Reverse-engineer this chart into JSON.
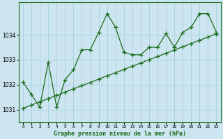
{
  "title": "Graphe pression niveau de la mer (hPa)",
  "background_color": "#cce5f0",
  "plot_bg_color": "#cce5f0",
  "line_color": "#1a6b1a",
  "grid_color": "#aad4e0",
  "xlim": [
    -0.5,
    23.5
  ],
  "ylim": [
    1030.5,
    1035.3
  ],
  "yticks": [
    1031,
    1032,
    1033,
    1034
  ],
  "xticks": [
    0,
    1,
    2,
    3,
    4,
    5,
    6,
    7,
    8,
    9,
    10,
    11,
    12,
    13,
    14,
    15,
    16,
    17,
    18,
    19,
    20,
    21,
    22,
    23
  ],
  "series1_x": [
    0,
    1,
    2,
    3,
    4,
    5,
    6,
    7,
    8,
    9,
    10,
    11,
    12,
    13,
    14,
    15,
    16,
    17,
    18,
    19,
    20,
    21,
    22,
    23
  ],
  "series1_y": [
    1032.1,
    1031.6,
    1031.1,
    1032.9,
    1031.1,
    1032.2,
    1032.6,
    1033.4,
    1033.4,
    1034.1,
    1034.85,
    1034.3,
    1033.3,
    1033.2,
    1033.2,
    1033.5,
    1033.5,
    1034.05,
    1033.5,
    1034.1,
    1034.3,
    1034.85,
    1034.85,
    1034.1
  ],
  "series2_x": [
    0,
    1,
    2,
    3,
    4,
    5,
    6,
    7,
    8,
    9,
    10,
    11,
    12,
    13,
    14,
    15,
    16,
    17,
    18,
    19,
    20,
    21,
    22,
    23
  ],
  "series2_y": [
    1031.05,
    1031.18,
    1031.31,
    1031.44,
    1031.57,
    1031.7,
    1031.83,
    1031.96,
    1032.09,
    1032.22,
    1032.35,
    1032.48,
    1032.61,
    1032.74,
    1032.87,
    1033.0,
    1033.13,
    1033.26,
    1033.39,
    1033.52,
    1033.65,
    1033.78,
    1033.91,
    1034.04
  ],
  "marker": "+",
  "markersize": 4,
  "markeredgewidth": 0.9,
  "linewidth": 0.9
}
